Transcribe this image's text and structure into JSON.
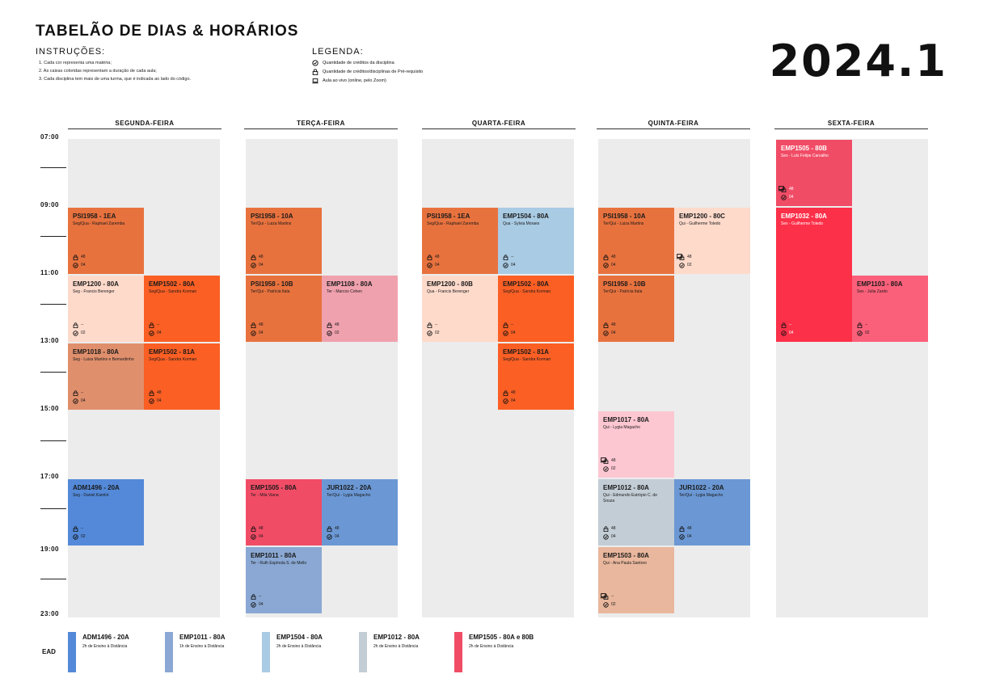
{
  "header": {
    "title": "TABELÃO DE DIAS & HORÁRIOS",
    "instructions_title": "INSTRUÇÕES:",
    "instructions": [
      "1. Cada cor representa uma matéria;",
      "2. As caixas coloridas representam a duração de cada aula;",
      "3. Cada disciplina tem mais de uma turma, que é indicada ao lado do código."
    ],
    "legend_title": "LEGENDA:",
    "legend": [
      {
        "icon": "check-circle-icon",
        "text": "Quantidade de créditos da disciplina"
      },
      {
        "icon": "lock-icon",
        "text": "Quantidade de créditos/disciplinas de Pré-requisito"
      },
      {
        "icon": "laptop-icon",
        "text": "Aula ao vivo (online, pelo Zoom)"
      }
    ],
    "year": "2024.1"
  },
  "days": [
    "SEGUNDA-FEIRA",
    "TERÇA-FEIRA",
    "QUARTA-FEIRA",
    "QUINTA-FEIRA",
    "SEXTA-FEIRA"
  ],
  "times": [
    "07:00",
    "09:00",
    "11:00",
    "13:00",
    "15:00",
    "17:00",
    "19:00",
    "23:00"
  ],
  "cards": [
    {
      "code": "PSI1958 - 1EA",
      "prof": "Seg/Qua - Raphael Zaremba",
      "prereq": "48",
      "credits": "04",
      "zoom": false,
      "color": "orange"
    },
    {
      "code": "EMP1200 - 80A",
      "prof": "Seg - Francis Berenger",
      "prereq": "--",
      "credits": "02",
      "zoom": false,
      "color": "peach"
    },
    {
      "code": "EMP1502 - 80A",
      "prof": "Seg/Qua - Sandra Korman",
      "prereq": "--",
      "credits": "04",
      "zoom": false,
      "color": "red"
    },
    {
      "code": "EMP1018 - 80A",
      "prof": "Seg - Luiza Martins e Bemardinho",
      "prereq": "--",
      "credits": "04",
      "zoom": false,
      "color": "tan"
    },
    {
      "code": "EMP1502 - 81A",
      "prof": "Seg/Qua - Sandra Korman",
      "prereq": "48",
      "credits": "04",
      "zoom": false,
      "color": "red"
    },
    {
      "code": "ADM1496 - 20A",
      "prof": "Seg - Daniel Kamlot",
      "prereq": "--",
      "credits": "02",
      "zoom": false,
      "color": "blue"
    },
    {
      "code": "PSI1958 - 10A",
      "prof": "Ter/Qui - Luiza Martins",
      "prereq": "48",
      "credits": "04",
      "zoom": false,
      "color": "orange"
    },
    {
      "code": "PSI1958 - 10B",
      "prof": "Ter/Qui - Patrícia Itala",
      "prereq": "48",
      "credits": "04",
      "zoom": false,
      "color": "orange"
    },
    {
      "code": "EMP1108 - 80A",
      "prof": "Ter - Marcos Cohen",
      "prereq": "48",
      "credits": "02",
      "zoom": false,
      "color": "pink"
    },
    {
      "code": "EMP1505 - 80A",
      "prof": "Ter - Mila Viana",
      "prereq": "48",
      "credits": "04",
      "zoom": false,
      "color": "crimson"
    },
    {
      "code": "JUR1022 - 20A",
      "prof": "Ter/Qui - Lygia Magacho",
      "prereq": "48",
      "credits": "04",
      "zoom": false,
      "color": "mblue"
    },
    {
      "code": "EMP1011 - 80A",
      "prof": "Ter - Ruth Espínola S. de Mello",
      "prereq": "--",
      "credits": "04",
      "zoom": false,
      "color": "steel"
    },
    {
      "code": "PSI1958 - 1EA",
      "prof": "Seg/Qua - Raphael Zaremba",
      "prereq": "48",
      "credits": "04",
      "zoom": false,
      "color": "orange"
    },
    {
      "code": "EMP1504 - 80A",
      "prof": "Qua - Sylvia Moraes",
      "prereq": "--",
      "credits": "04",
      "zoom": false,
      "color": "lightblue"
    },
    {
      "code": "EMP1200 - 80B",
      "prof": "Qua - Francis Berenger",
      "prereq": "--",
      "credits": "02",
      "zoom": false,
      "color": "peach"
    },
    {
      "code": "EMP1502 - 80A",
      "prof": "Seg/Qua - Sandra Korman",
      "prereq": "--",
      "credits": "04",
      "zoom": false,
      "color": "red"
    },
    {
      "code": "EMP1502 - 81A",
      "prof": "Seg/Qua - Sandra Korman",
      "prereq": "48",
      "credits": "04",
      "zoom": false,
      "color": "red"
    },
    {
      "code": "PSI1958 - 10A",
      "prof": "Ter/Qui - Luiza Martins",
      "prereq": "48",
      "credits": "04",
      "zoom": false,
      "color": "orange"
    },
    {
      "code": "EMP1200 - 80C",
      "prof": "Qui - Guilherme Toledo",
      "prereq": "48",
      "credits": "02",
      "zoom": true,
      "color": "peach"
    },
    {
      "code": "PSI1958 - 10B",
      "prof": "Ter/Qui - Patrícia Itala",
      "prereq": "48",
      "credits": "04",
      "zoom": false,
      "color": "orange"
    },
    {
      "code": "EMP1017 - 80A",
      "prof": "Qui - Lygia Magacho",
      "prereq": "48",
      "credits": "02",
      "zoom": true,
      "color": "lpink"
    },
    {
      "code": "EMP1012 - 80A",
      "prof": "Qui - Edmundo Eutrópio C. de Souza",
      "prereq": "48",
      "credits": "04",
      "zoom": false,
      "color": "grey"
    },
    {
      "code": "JUR1022 - 20A",
      "prof": "Ter/Qui - Lygia Magacho",
      "prereq": "48",
      "credits": "04",
      "zoom": false,
      "color": "mblue"
    },
    {
      "code": "EMP1503 - 80A",
      "prof": "Qui - Ana Paula Santoro",
      "prereq": "--",
      "credits": "02",
      "zoom": true,
      "color": "sand"
    },
    {
      "code": "EMP1505 - 80B",
      "prof": "Sex - Luís Felipe Carvalho",
      "prereq": "48",
      "credits": "04",
      "zoom": true,
      "color": "crimson"
    },
    {
      "code": "EMP1032 - 80A",
      "prof": "Sex - Guilherme Toledo",
      "prereq": "--",
      "credits": "04",
      "zoom": false,
      "color": "bred"
    },
    {
      "code": "EMP1103 - 80A",
      "prof": "Sex - Julia Zardo",
      "prereq": "--",
      "credits": "02",
      "zoom": false,
      "color": "rose"
    }
  ],
  "ead": {
    "label": "EAD",
    "items": [
      {
        "code": "ADM1496 - 20A",
        "desc": "2h de Ensino à Distância",
        "color": "#5389d8"
      },
      {
        "code": "EMP1011 - 80A",
        "desc": "1h de Ensino à Distância",
        "color": "#8aa8d3"
      },
      {
        "code": "EMP1504 - 80A",
        "desc": "2h de Ensino à Distância",
        "color": "#a9cbe4"
      },
      {
        "code": "EMP1012 - 80A",
        "desc": "2h de Ensino à Distância",
        "color": "#c3cdd5"
      },
      {
        "code": "EMP1505 - 80A e 80B",
        "desc": "2h de Ensino à Distância",
        "color": "#f14c66"
      }
    ]
  }
}
